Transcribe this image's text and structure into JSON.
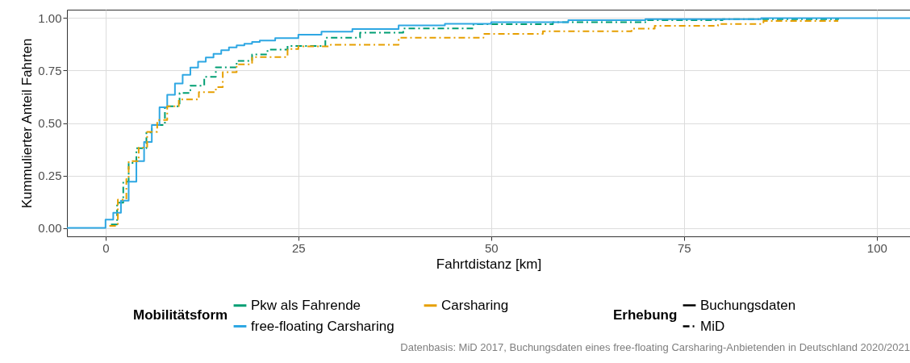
{
  "chart_data": {
    "type": "step",
    "xlabel": "Fahrtdistanz [km]",
    "ylabel": "Kummulierter Anteil Fahrten",
    "legend_title": "Mobilitätsform",
    "legend": "bottom",
    "grid": true,
    "xlim": [
      -5,
      104.3
    ],
    "xticks": [
      0,
      25,
      50,
      75,
      100
    ],
    "ylim": [
      -0.04,
      1.04
    ],
    "yticks": [
      {
        "value": 0,
        "label": "0.00"
      },
      {
        "value": 0.25,
        "label": "0.25"
      },
      {
        "value": 0.5,
        "label": "0.50"
      },
      {
        "value": 0.75,
        "label": "0.75"
      },
      {
        "value": 1,
        "label": "1.00"
      }
    ],
    "annotations": [
      "Erhebung",
      "Buchungsdaten",
      "MiD",
      "Datenbasis: MiD 2017, Buchungsdaten eines free-floating Carsharing-Anbietenden in Deutschland 2020/2021"
    ],
    "series": [
      {
        "name": "Pkw als Fahrende",
        "color": "#009e73",
        "line_style": "dashed",
        "x": [
          0.7,
          1.5,
          2.3,
          3,
          4,
          5.3,
          6,
          7.7,
          9.6,
          11,
          12.8,
          14.3,
          17,
          19,
          21,
          23.6,
          28.5,
          33,
          38.6,
          47.7,
          58,
          70,
          80,
          95
        ],
        "values": [
          0.017,
          0.12,
          0.22,
          0.31,
          0.38,
          0.455,
          0.49,
          0.58,
          0.643,
          0.678,
          0.72,
          0.765,
          0.796,
          0.827,
          0.85,
          0.867,
          0.906,
          0.93,
          0.951,
          0.971,
          0.98,
          0.99,
          0.995,
          1
        ]
      },
      {
        "name": "free-floating Carsharing",
        "color": "#2ea7e3",
        "line_style": "solid",
        "x": [
          -5,
          0,
          1,
          2,
          3,
          4,
          5,
          6,
          7,
          8,
          9,
          10,
          11,
          12,
          13,
          14,
          15,
          16,
          17,
          18,
          19,
          20,
          22,
          25,
          28,
          32,
          38,
          44,
          50,
          60,
          70,
          85,
          104.3
        ],
        "values": [
          0,
          0.04,
          0.072,
          0.13,
          0.22,
          0.318,
          0.41,
          0.49,
          0.575,
          0.635,
          0.688,
          0.73,
          0.764,
          0.792,
          0.812,
          0.83,
          0.847,
          0.86,
          0.87,
          0.878,
          0.886,
          0.893,
          0.905,
          0.921,
          0.935,
          0.948,
          0.965,
          0.973,
          0.98,
          0.99,
          0.995,
          1,
          1
        ]
      },
      {
        "name": "Carsharing",
        "color": "#e69f00",
        "line_style": "dashed",
        "x": [
          0.5,
          1.6,
          2.7,
          3,
          4.3,
          5.4,
          6.7,
          8,
          9.5,
          12.1,
          14.3,
          15.2,
          17,
          19,
          23.6,
          25,
          29.2,
          38,
          49,
          56.7,
          68.2,
          71.2,
          79.4,
          85.3,
          95
        ],
        "values": [
          0.01,
          0.135,
          0.233,
          0.318,
          0.383,
          0.458,
          0.514,
          0.58,
          0.612,
          0.647,
          0.671,
          0.742,
          0.78,
          0.814,
          0.853,
          0.865,
          0.873,
          0.906,
          0.925,
          0.937,
          0.95,
          0.963,
          0.972,
          0.986,
          0.986
        ]
      }
    ]
  }
}
